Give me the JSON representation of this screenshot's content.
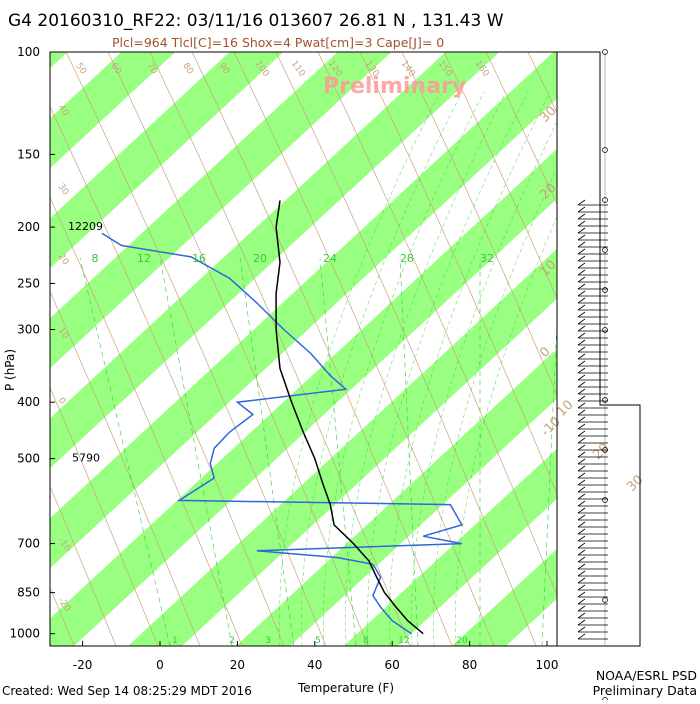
{
  "chart_data": {
    "type": "skew-t",
    "title": "G4 20160310_RF22: 03/11/16 013607  26.81 N , 131.43 W",
    "subtitle": "Plcl=964 Tlcl[C]=16 Shox=4 Pwat[cm]=3 Cape[J]= 0",
    "watermark": "Preliminary",
    "xlabel": "Temperature (F)",
    "ylabel": "P (hPa)",
    "x_ticks": [
      -20,
      0,
      20,
      40,
      60,
      80,
      100
    ],
    "y_ticks": [
      100,
      150,
      200,
      250,
      300,
      400,
      500,
      700,
      850,
      1000
    ],
    "temperature_profile": [
      {
        "p": 180,
        "t": 31
      },
      {
        "p": 200,
        "t": 30
      },
      {
        "p": 230,
        "t": 31
      },
      {
        "p": 260,
        "t": 30
      },
      {
        "p": 300,
        "t": 30
      },
      {
        "p": 350,
        "t": 31
      },
      {
        "p": 400,
        "t": 34
      },
      {
        "p": 450,
        "t": 37
      },
      {
        "p": 500,
        "t": 40
      },
      {
        "p": 550,
        "t": 42
      },
      {
        "p": 600,
        "t": 44
      },
      {
        "p": 650,
        "t": 45
      },
      {
        "p": 700,
        "t": 50
      },
      {
        "p": 750,
        "t": 54
      },
      {
        "p": 800,
        "t": 56
      },
      {
        "p": 850,
        "t": 58
      },
      {
        "p": 900,
        "t": 61
      },
      {
        "p": 950,
        "t": 64
      },
      {
        "p": 1000,
        "t": 68
      }
    ],
    "dewpoint_profile": [
      {
        "p": 205,
        "t": -15
      },
      {
        "p": 215,
        "t": -10
      },
      {
        "p": 225,
        "t": 8
      },
      {
        "p": 245,
        "t": 18
      },
      {
        "p": 270,
        "t": 25
      },
      {
        "p": 300,
        "t": 32
      },
      {
        "p": 330,
        "t": 39
      },
      {
        "p": 360,
        "t": 44
      },
      {
        "p": 380,
        "t": 48
      },
      {
        "p": 400,
        "t": 20
      },
      {
        "p": 420,
        "t": 24
      },
      {
        "p": 450,
        "t": 18
      },
      {
        "p": 480,
        "t": 14
      },
      {
        "p": 510,
        "t": 13
      },
      {
        "p": 540,
        "t": 14
      },
      {
        "p": 590,
        "t": 5
      },
      {
        "p": 600,
        "t": 75
      },
      {
        "p": 650,
        "t": 78
      },
      {
        "p": 680,
        "t": 68
      },
      {
        "p": 700,
        "t": 78
      },
      {
        "p": 720,
        "t": 25
      },
      {
        "p": 740,
        "t": 46
      },
      {
        "p": 760,
        "t": 55
      },
      {
        "p": 800,
        "t": 57
      },
      {
        "p": 860,
        "t": 55
      },
      {
        "p": 900,
        "t": 57
      },
      {
        "p": 950,
        "t": 60
      },
      {
        "p": 1000,
        "t": 65
      }
    ],
    "height_labels": [
      {
        "p": 200,
        "text": "12209"
      },
      {
        "p": 500,
        "text": "5790"
      }
    ],
    "mixing_ratio_labels": [
      "8",
      "12",
      "16",
      "20",
      "24",
      "28",
      "32"
    ],
    "mixing_ratio_bottom_labels": [
      "1",
      "2",
      "3",
      "5",
      "8",
      "12",
      "20"
    ],
    "dry_adiabat_labels": [
      "50",
      "60",
      "70",
      "80",
      "90",
      "100",
      "110",
      "120",
      "130",
      "140",
      "150",
      "160"
    ],
    "dry_adiabat_left_labels": [
      "40",
      "30",
      "20",
      "10",
      "0",
      "-10",
      "-20"
    ],
    "moist_adiabat_labels": [
      "30",
      "20",
      "10",
      "0",
      "-10",
      "10",
      "20",
      "30"
    ]
  },
  "footer": {
    "created": "Created: Wed Sep 14 08:25:29 MDT 2016",
    "org": "NOAA/ESRL PSD",
    "status": "Preliminary Data"
  },
  "colors": {
    "band": "#99ff80",
    "temperature": "#000000",
    "dewpoint": "#3366dd",
    "adiabat": "#c8a37c",
    "mixing": "#33cc33",
    "watermark": "#ff9999"
  }
}
